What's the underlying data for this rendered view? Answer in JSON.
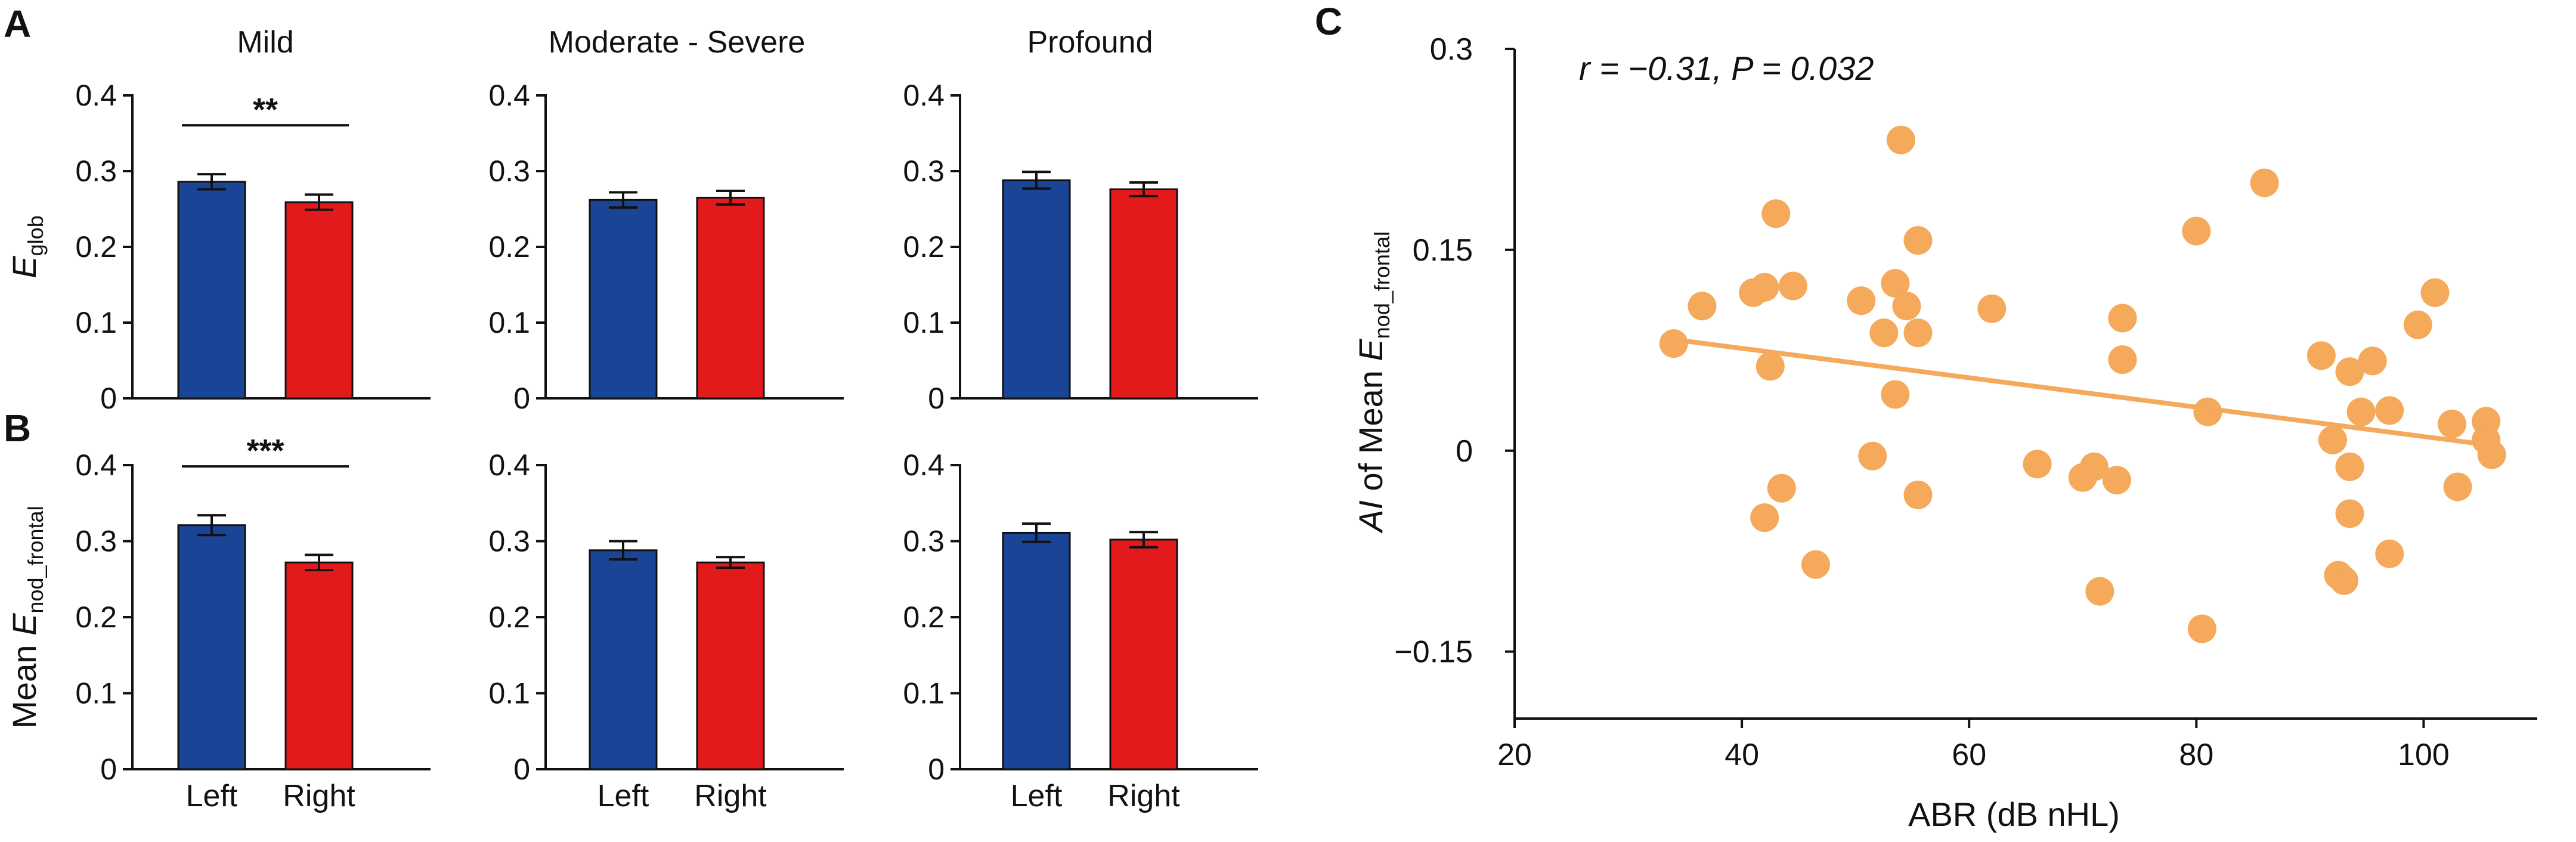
{
  "panel_letters": {
    "a": "A",
    "b": "B",
    "c": "C"
  },
  "colors": {
    "left": "#1a4597",
    "right": "#e31a1c",
    "scatter": "#f5a95a",
    "axis": "#111111"
  },
  "bar_panels_shared": {
    "ylim": [
      0,
      0.4
    ],
    "yticks": [
      "0",
      "0.1",
      "0.2",
      "0.3",
      "0.4"
    ],
    "categories": [
      "Left",
      "Right"
    ],
    "row_a_ylabel": {
      "italic": "E",
      "sub": "glob"
    },
    "row_b_ylabel": {
      "prefix": "Mean ",
      "italic": "E",
      "sub": "nod_frontal"
    }
  },
  "chart_data": [
    {
      "type": "bar",
      "panel": "A",
      "title": "Mild",
      "categories": [
        "Left",
        "Right"
      ],
      "values": [
        0.286,
        0.259
      ],
      "errors": [
        0.01,
        0.01
      ],
      "ylim": [
        0,
        0.4
      ],
      "significance": "**"
    },
    {
      "type": "bar",
      "panel": "A",
      "title": "Moderate - Severe",
      "categories": [
        "Left",
        "Right"
      ],
      "values": [
        0.262,
        0.265
      ],
      "errors": [
        0.01,
        0.009
      ],
      "ylim": [
        0,
        0.4
      ],
      "significance": ""
    },
    {
      "type": "bar",
      "panel": "A",
      "title": "Profound",
      "categories": [
        "Left",
        "Right"
      ],
      "values": [
        0.288,
        0.276
      ],
      "errors": [
        0.011,
        0.009
      ],
      "ylim": [
        0,
        0.4
      ],
      "significance": ""
    },
    {
      "type": "bar",
      "panel": "B",
      "title": "",
      "categories": [
        "Left",
        "Right"
      ],
      "values": [
        0.321,
        0.272
      ],
      "errors": [
        0.013,
        0.01
      ],
      "ylim": [
        0,
        0.4
      ],
      "significance": "***"
    },
    {
      "type": "bar",
      "panel": "B",
      "title": "",
      "categories": [
        "Left",
        "Right"
      ],
      "values": [
        0.288,
        0.272
      ],
      "errors": [
        0.012,
        0.007
      ],
      "ylim": [
        0,
        0.4
      ],
      "significance": ""
    },
    {
      "type": "bar",
      "panel": "B",
      "title": "",
      "categories": [
        "Left",
        "Right"
      ],
      "values": [
        0.311,
        0.302
      ],
      "errors": [
        0.012,
        0.01
      ],
      "ylim": [
        0,
        0.4
      ],
      "significance": ""
    },
    {
      "type": "scatter",
      "panel": "C",
      "xlabel": "ABR (dB nHL)",
      "ylabel": {
        "italic": "AI",
        "rest": " of Mean ",
        "italic2": "E",
        "sub": "nod_frontal"
      },
      "annotation": "r = −0.31, P = 0.032",
      "xlim": [
        20,
        110
      ],
      "ylim": [
        -0.2,
        0.3
      ],
      "xticks": [
        "20",
        "40",
        "60",
        "80",
        "100"
      ],
      "yticks": [
        "0.3",
        "0.15",
        "0",
        "−0.15"
      ],
      "fit_line": {
        "x": [
          34,
          106
        ],
        "y": [
          0.083,
          0.004
        ]
      },
      "points": [
        [
          34,
          0.08
        ],
        [
          36.5,
          0.108
        ],
        [
          41,
          0.118
        ],
        [
          42,
          0.122
        ],
        [
          42,
          -0.05
        ],
        [
          42.5,
          0.063
        ],
        [
          43,
          0.177
        ],
        [
          43.5,
          -0.028
        ],
        [
          44.5,
          0.123
        ],
        [
          46.5,
          -0.085
        ],
        [
          50.5,
          0.112
        ],
        [
          51.5,
          -0.004
        ],
        [
          52.5,
          0.088
        ],
        [
          53.5,
          0.042
        ],
        [
          53.5,
          0.125
        ],
        [
          54,
          0.232
        ],
        [
          54.5,
          0.108
        ],
        [
          55.5,
          0.157
        ],
        [
          55.5,
          0.088
        ],
        [
          55.5,
          -0.033
        ],
        [
          62,
          0.106
        ],
        [
          66,
          -0.01
        ],
        [
          70,
          -0.02
        ],
        [
          71,
          -0.012
        ],
        [
          71.5,
          -0.105
        ],
        [
          73,
          -0.022
        ],
        [
          73.5,
          0.099
        ],
        [
          73.5,
          0.068
        ],
        [
          80,
          0.164
        ],
        [
          80.5,
          -0.133
        ],
        [
          81,
          0.029
        ],
        [
          86,
          0.2
        ],
        [
          91,
          0.071
        ],
        [
          92,
          0.008
        ],
        [
          92.5,
          -0.093
        ],
        [
          93,
          -0.097
        ],
        [
          93.5,
          -0.047
        ],
        [
          93.5,
          -0.012
        ],
        [
          93.5,
          0.059
        ],
        [
          94.5,
          0.029
        ],
        [
          95.5,
          0.067
        ],
        [
          97,
          0.03
        ],
        [
          97,
          -0.077
        ],
        [
          99.5,
          0.094
        ],
        [
          101,
          0.118
        ],
        [
          102.5,
          0.02
        ],
        [
          103,
          -0.027
        ],
        [
          105.5,
          0.022
        ],
        [
          105.5,
          0.008
        ],
        [
          106,
          -0.003
        ]
      ]
    }
  ]
}
